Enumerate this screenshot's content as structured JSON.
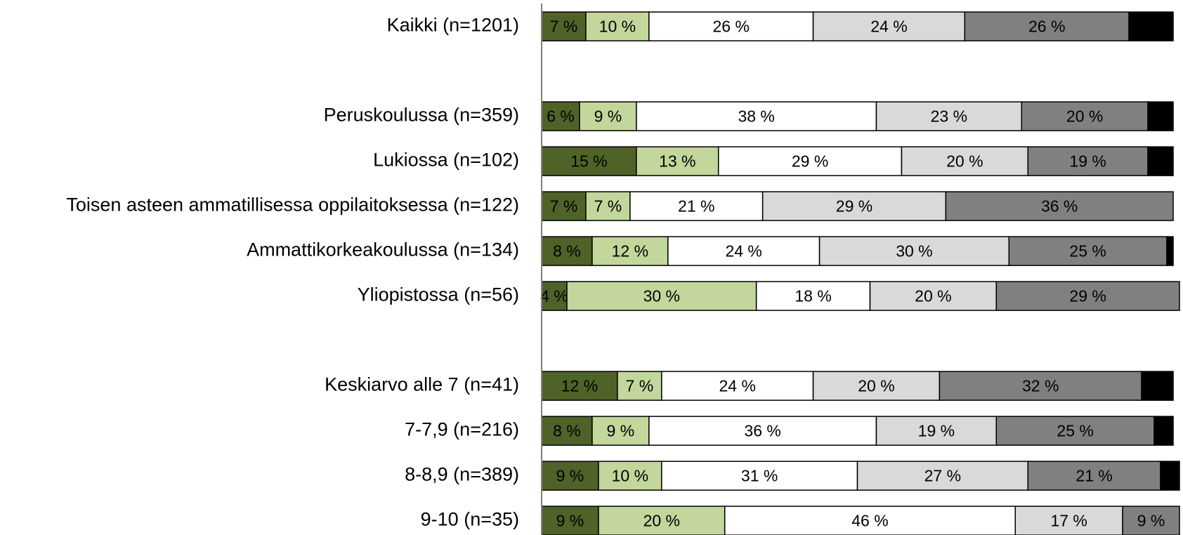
{
  "chart_data": {
    "type": "stacked-bar-horizontal",
    "categories": [
      "Kaikki (n=1201)",
      null,
      "Peruskoulussa (n=359)",
      "Lukiossa (n=102)",
      "Toisen asteen ammatillisessa oppilaitoksessa (n=122)",
      "Ammattikorkeakoulussa (n=134)",
      "Yliopistossa (n=56)",
      null,
      "Keskiarvo alle 7 (n=41)",
      "7-7,9 (n=216)",
      "8-8,9 (n=389)",
      "9-10 (n=35)"
    ],
    "xlim": [
      0,
      100
    ],
    "series": [
      {
        "color": "#4f6228",
        "values": [
          7,
          null,
          6,
          15,
          7,
          8,
          4,
          null,
          12,
          8,
          9,
          9
        ],
        "value_labels": [
          "7 %",
          null,
          "6 %",
          "15 %",
          "7 %",
          "8 %",
          "4 %",
          null,
          "12 %",
          "8 %",
          "9 %",
          "9 %"
        ]
      },
      {
        "color": "#c3d69b",
        "values": [
          10,
          null,
          9,
          13,
          7,
          12,
          30,
          null,
          7,
          9,
          10,
          20
        ],
        "value_labels": [
          "10 %",
          null,
          "9 %",
          "13 %",
          "7 %",
          "12 %",
          "30 %",
          null,
          "7 %",
          "9 %",
          "10 %",
          "20 %"
        ]
      },
      {
        "color": "#ffffff",
        "values": [
          26,
          null,
          38,
          29,
          21,
          24,
          18,
          null,
          24,
          36,
          31,
          46
        ],
        "value_labels": [
          "26 %",
          null,
          "38 %",
          "29 %",
          "21 %",
          "24 %",
          "18 %",
          null,
          "24 %",
          "36 %",
          "31 %",
          "46 %"
        ]
      },
      {
        "color": "#d9d9d9",
        "values": [
          24,
          null,
          23,
          20,
          29,
          30,
          20,
          null,
          20,
          19,
          27,
          17
        ],
        "value_labels": [
          "24 %",
          null,
          "23 %",
          "20 %",
          "29 %",
          "30 %",
          "20 %",
          null,
          "20 %",
          "19 %",
          "27 %",
          "17 %"
        ]
      },
      {
        "color": "#808080",
        "values": [
          26,
          null,
          20,
          19,
          36,
          25,
          29,
          null,
          32,
          25,
          21,
          9
        ],
        "value_labels": [
          "26 %",
          null,
          "20 %",
          "19 %",
          "36 %",
          "25 %",
          "29 %",
          null,
          "32 %",
          "25 %",
          "21 %",
          "9 %"
        ]
      },
      {
        "color": "#000000",
        "values": [
          7,
          null,
          4,
          4,
          0,
          1,
          0,
          null,
          5,
          3,
          3,
          0
        ]
      }
    ]
  }
}
